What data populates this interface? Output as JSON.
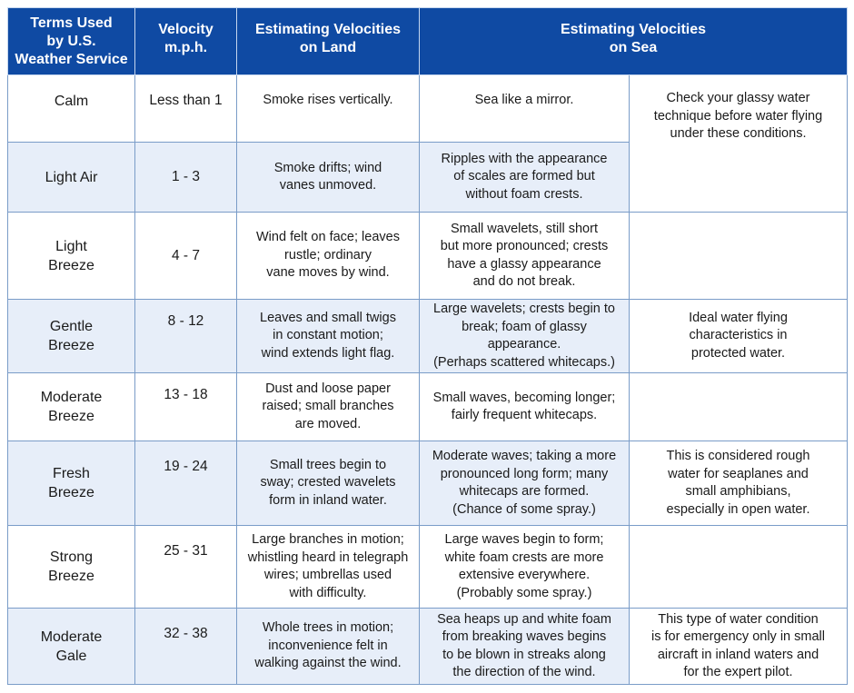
{
  "header": {
    "terms": "Terms Used\nby U.S.\nWeather Service",
    "velocity": "Velocity\nm.p.h.",
    "land": "Estimating Velocities\non Land",
    "sea": "Estimating Velocities\non Sea"
  },
  "rows": [
    {
      "term": "Calm",
      "velocity": "Less than 1",
      "land": "Smoke rises vertically.",
      "sea": "Sea like a mirror."
    },
    {
      "term": "Light Air",
      "velocity": "1 - 3",
      "land": "Smoke drifts; wind\nvanes unmoved.",
      "sea": "Ripples with the appearance\nof scales are formed but\nwithout foam crests."
    },
    {
      "term": "Light\nBreeze",
      "velocity": "4 - 7",
      "land": "Wind felt on face; leaves\nrustle; ordinary\nvane moves by wind.",
      "sea": "Small wavelets, still short\nbut more pronounced; crests\nhave a glassy appearance\nand do not break."
    },
    {
      "term": "Gentle\nBreeze",
      "velocity": "8 - 12",
      "land": "Leaves and small twigs\nin constant motion;\nwind extends light flag.",
      "sea": "Large wavelets; crests begin to\nbreak; foam of glassy appearance.\n(Perhaps scattered whitecaps.)"
    },
    {
      "term": "Moderate\nBreeze",
      "velocity": "13 - 18",
      "land": "Dust and loose paper\nraised; small branches\nare moved.",
      "sea": "Small waves, becoming longer;\nfairly frequent whitecaps."
    },
    {
      "term": "Fresh\nBreeze",
      "velocity": "19 - 24",
      "land": "Small trees begin to\nsway; crested wavelets\nform in inland water.",
      "sea": "Moderate waves; taking a more\npronounced long form; many\nwhitecaps are formed.\n(Chance of some spray.)"
    },
    {
      "term": "Strong\nBreeze",
      "velocity": "25 - 31",
      "land": "Large branches in motion;\nwhistling heard in telegraph\nwires; umbrellas used\nwith difficulty.",
      "sea": "Large waves begin to form;\nwhite foam crests are more\nextensive everywhere.\n(Probably some spray.)"
    },
    {
      "term": "Moderate\nGale",
      "velocity": "32 - 38",
      "land": "Whole trees in motion;\ninconvenience felt in\nwalking against the wind.",
      "sea": "Sea heaps up and white foam\nfrom breaking waves begins\nto be blown in streaks along\nthe direction of the wind."
    }
  ],
  "notes": {
    "glassy": "Check your glassy water\ntechnique before water flying\nunder these conditions.",
    "ideal": "Ideal water flying\ncharacteristics in\nprotected water.",
    "rough": "This is considered rough\nwater for seaplanes and\nsmall amphibians,\nespecially in open water.",
    "emergency": "This type of water condition\nis for emergency only in  small\naircraft in inland waters and\nfor the expert pilot."
  }
}
